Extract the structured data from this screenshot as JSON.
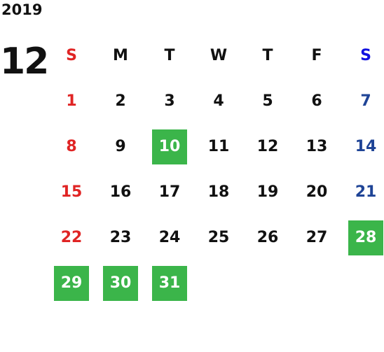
{
  "year": "2019",
  "month": "12",
  "weekdays": [
    "S",
    "M",
    "T",
    "W",
    "T",
    "F",
    "S"
  ],
  "weeks": [
    [
      {
        "day": "1"
      },
      {
        "day": "2"
      },
      {
        "day": "3"
      },
      {
        "day": "4"
      },
      {
        "day": "5"
      },
      {
        "day": "6"
      },
      {
        "day": "7"
      }
    ],
    [
      {
        "day": "8"
      },
      {
        "day": "9"
      },
      {
        "day": "10",
        "highlight": true
      },
      {
        "day": "11"
      },
      {
        "day": "12"
      },
      {
        "day": "13"
      },
      {
        "day": "14"
      }
    ],
    [
      {
        "day": "15"
      },
      {
        "day": "16"
      },
      {
        "day": "17"
      },
      {
        "day": "18"
      },
      {
        "day": "19"
      },
      {
        "day": "20"
      },
      {
        "day": "21"
      }
    ],
    [
      {
        "day": "22"
      },
      {
        "day": "23"
      },
      {
        "day": "24"
      },
      {
        "day": "25"
      },
      {
        "day": "26"
      },
      {
        "day": "27"
      },
      {
        "day": "28",
        "highlight": true
      }
    ],
    [
      {
        "day": "29",
        "highlight": true
      },
      {
        "day": "30",
        "highlight": true
      },
      {
        "day": "31",
        "highlight": true
      }
    ]
  ]
}
